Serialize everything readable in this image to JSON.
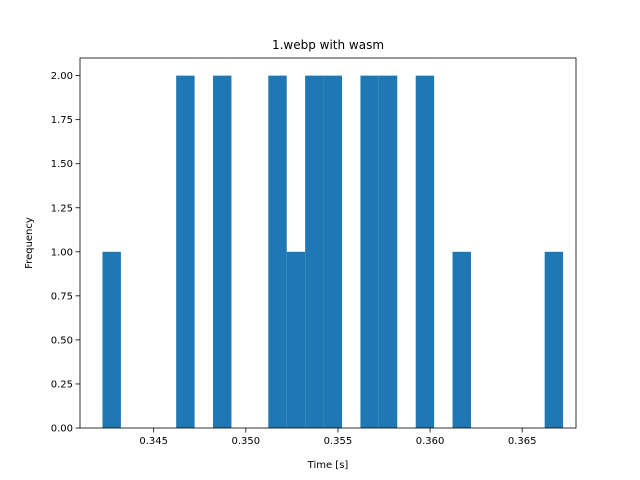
{
  "chart_data": {
    "type": "bar",
    "title": "1.webp with wasm",
    "xlabel": "Time [s]",
    "ylabel": "Frequency",
    "xlim": [
      0.341,
      0.36792
    ],
    "ylim": [
      0,
      2.1
    ],
    "xticks": [
      "0.345",
      "0.350",
      "0.355",
      "0.360",
      "0.365"
    ],
    "xtick_values": [
      0.345,
      0.35,
      0.355,
      0.36,
      0.365
    ],
    "yticks": [
      "0.00",
      "0.25",
      "0.50",
      "0.75",
      "1.00",
      "1.25",
      "1.50",
      "1.75",
      "2.00"
    ],
    "ytick_values": [
      0,
      0.25,
      0.5,
      0.75,
      1.0,
      1.25,
      1.5,
      1.75,
      2.0
    ],
    "bin_edges": [
      0.34222,
      0.34322,
      0.34422,
      0.34522,
      0.34622,
      0.34722,
      0.34822,
      0.34922,
      0.35022,
      0.35122,
      0.35222,
      0.35322,
      0.35422,
      0.35522,
      0.35622,
      0.35722,
      0.35822,
      0.35922,
      0.36022,
      0.36122,
      0.36222,
      0.36322,
      0.36422,
      0.36522,
      0.36622,
      0.36722
    ],
    "values": [
      1,
      0,
      0,
      0,
      2,
      0,
      2,
      0,
      0,
      2,
      1,
      2,
      2,
      0,
      2,
      2,
      0,
      2,
      0,
      1,
      0,
      0,
      0,
      0,
      1
    ],
    "color": "#1f77b4",
    "grid": false
  }
}
